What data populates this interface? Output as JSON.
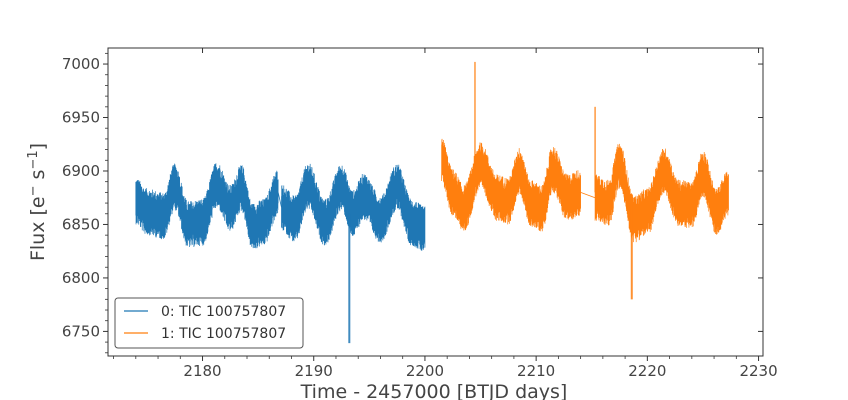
{
  "chart_data": {
    "type": "line",
    "title": "",
    "xlabel": "Time - 2457000 [BTJD days]",
    "ylabel_main": "Flux [e",
    "ylabel_sup1": "−",
    "ylabel_mid": " s",
    "ylabel_sup2": "−1",
    "ylabel_end": "]",
    "xlim": [
      2171.5,
      2230.4
    ],
    "ylim": [
      6727,
      7015
    ],
    "xticks": [
      2180,
      2190,
      2200,
      2210,
      2220,
      2230
    ],
    "yticks": [
      6750,
      6800,
      6850,
      6900,
      6950,
      7000
    ],
    "grid": false,
    "legend_position": "lower-left",
    "series": [
      {
        "name": "0: TIC 100757807",
        "color": "#1f77b4",
        "segments": [
          {
            "x_start": 2174.0,
            "x_end": 2186.8,
            "trend": [
              [
                2174.0,
                6872
              ],
              [
                2175.0,
                6862
              ],
              [
                2176.5,
                6858
              ],
              [
                2177.5,
                6885
              ],
              [
                2178.7,
                6850
              ],
              [
                2180.0,
                6852
              ],
              [
                2181.3,
                6887
              ],
              [
                2182.5,
                6865
              ],
              [
                2183.5,
                6884
              ],
              [
                2184.5,
                6848
              ],
              [
                2185.5,
                6852
              ],
              [
                2186.8,
                6880
              ]
            ],
            "amplitude": 22
          },
          {
            "x_start": 2187.1,
            "x_end": 2200.0,
            "trend": [
              [
                2187.1,
                6866
              ],
              [
                2188.3,
                6855
              ],
              [
                2189.5,
                6886
              ],
              [
                2191.0,
                6852
              ],
              [
                2192.5,
                6885
              ],
              [
                2193.5,
                6860
              ],
              [
                2194.5,
                6876
              ],
              [
                2196.0,
                6855
              ],
              [
                2197.5,
                6885
              ],
              [
                2198.8,
                6852
              ],
              [
                2200.0,
                6845
              ]
            ],
            "amplitude": 22
          }
        ],
        "dips": [
          {
            "x": 2193.2,
            "min": 6739,
            "max": 6860
          }
        ]
      },
      {
        "name": "1: TIC 100757807",
        "color": "#ff7f0e",
        "segments": [
          {
            "x_start": 2201.5,
            "x_end": 2214.0,
            "trend": [
              [
                2201.5,
                6910
              ],
              [
                2202.5,
                6880
              ],
              [
                2203.5,
                6865
              ],
              [
                2205.0,
                6905
              ],
              [
                2206.5,
                6875
              ],
              [
                2207.5,
                6872
              ],
              [
                2208.5,
                6900
              ],
              [
                2209.5,
                6870
              ],
              [
                2210.5,
                6865
              ],
              [
                2211.5,
                6902
              ],
              [
                2212.8,
                6875
              ],
              [
                2214.0,
                6880
              ]
            ],
            "amplitude": 22
          },
          {
            "x_start": 2215.3,
            "x_end": 2227.3,
            "trend": [
              [
                2215.3,
                6875
              ],
              [
                2216.5,
                6870
              ],
              [
                2217.5,
                6905
              ],
              [
                2218.8,
                6855
              ],
              [
                2220.0,
                6862
              ],
              [
                2221.5,
                6900
              ],
              [
                2222.8,
                6870
              ],
              [
                2224.0,
                6868
              ],
              [
                2225.0,
                6898
              ],
              [
                2226.2,
                6862
              ],
              [
                2227.3,
                6880
              ]
            ],
            "amplitude": 22
          }
        ],
        "dips": [
          {
            "x": 2218.6,
            "min": 6780,
            "max": 6870
          }
        ],
        "spikes": [
          {
            "x": 2204.5,
            "min": 6900,
            "max": 7002
          },
          {
            "x": 2215.3,
            "min": 6880,
            "max": 6960
          }
        ]
      }
    ]
  }
}
